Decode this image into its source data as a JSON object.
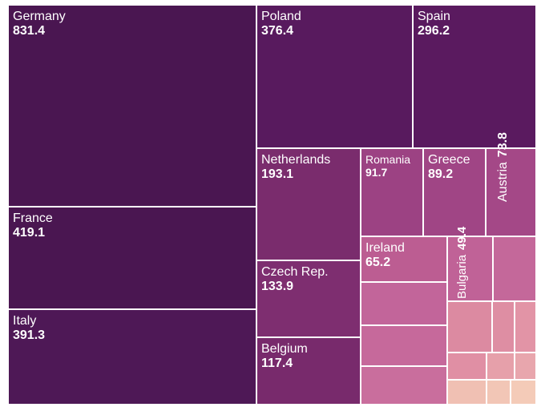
{
  "chart_data": {
    "type": "treemap",
    "title": "",
    "unit": "",
    "items": [
      {
        "name": "Germany",
        "value": 831.4,
        "color": "#4a1651"
      },
      {
        "name": "France",
        "value": 419.1,
        "color": "#4a1651"
      },
      {
        "name": "Italy",
        "value": 391.3,
        "color": "#4e1856"
      },
      {
        "name": "Poland",
        "value": 376.4,
        "color": "#581a5e"
      },
      {
        "name": "Spain",
        "value": 296.2,
        "color": "#5a1a5f"
      },
      {
        "name": "Netherlands",
        "value": 193.1,
        "color": "#7a2c6d"
      },
      {
        "name": "Czech Rep.",
        "value": 133.9,
        "color": "#7e2e70"
      },
      {
        "name": "Belgium",
        "value": 117.4,
        "color": "#782a6c"
      },
      {
        "name": "Romania",
        "value": 91.7,
        "color": "#9c4283"
      },
      {
        "name": "Greece",
        "value": 89.2,
        "color": "#a04585"
      },
      {
        "name": "Austria",
        "value": 73.8,
        "color": "#a44887"
      },
      {
        "name": "Ireland",
        "value": 65.2,
        "color": "#bc5d92"
      },
      {
        "name": "Bulgaria",
        "value": 49.4,
        "color": "#c06297"
      },
      {
        "name": "",
        "value": null,
        "color": "#c4689a"
      },
      {
        "name": "",
        "value": null,
        "color": "#c2659a"
      },
      {
        "name": "",
        "value": null,
        "color": "#c6699b"
      },
      {
        "name": "",
        "value": null,
        "color": "#c96e9d"
      },
      {
        "name": "",
        "value": null,
        "color": "#dc8aa1"
      },
      {
        "name": "",
        "value": null,
        "color": "#de8ea3"
      },
      {
        "name": "",
        "value": null,
        "color": "#e294a6"
      },
      {
        "name": "",
        "value": null,
        "color": "#e08fa4"
      },
      {
        "name": "",
        "value": null,
        "color": "#e6a0aa"
      },
      {
        "name": "",
        "value": null,
        "color": "#e8a6ad"
      },
      {
        "name": "",
        "value": null,
        "color": "#f0c0b3"
      },
      {
        "name": "",
        "value": null,
        "color": "#f2c6b6"
      },
      {
        "name": "",
        "value": null,
        "color": "#f4cbb8"
      }
    ]
  }
}
